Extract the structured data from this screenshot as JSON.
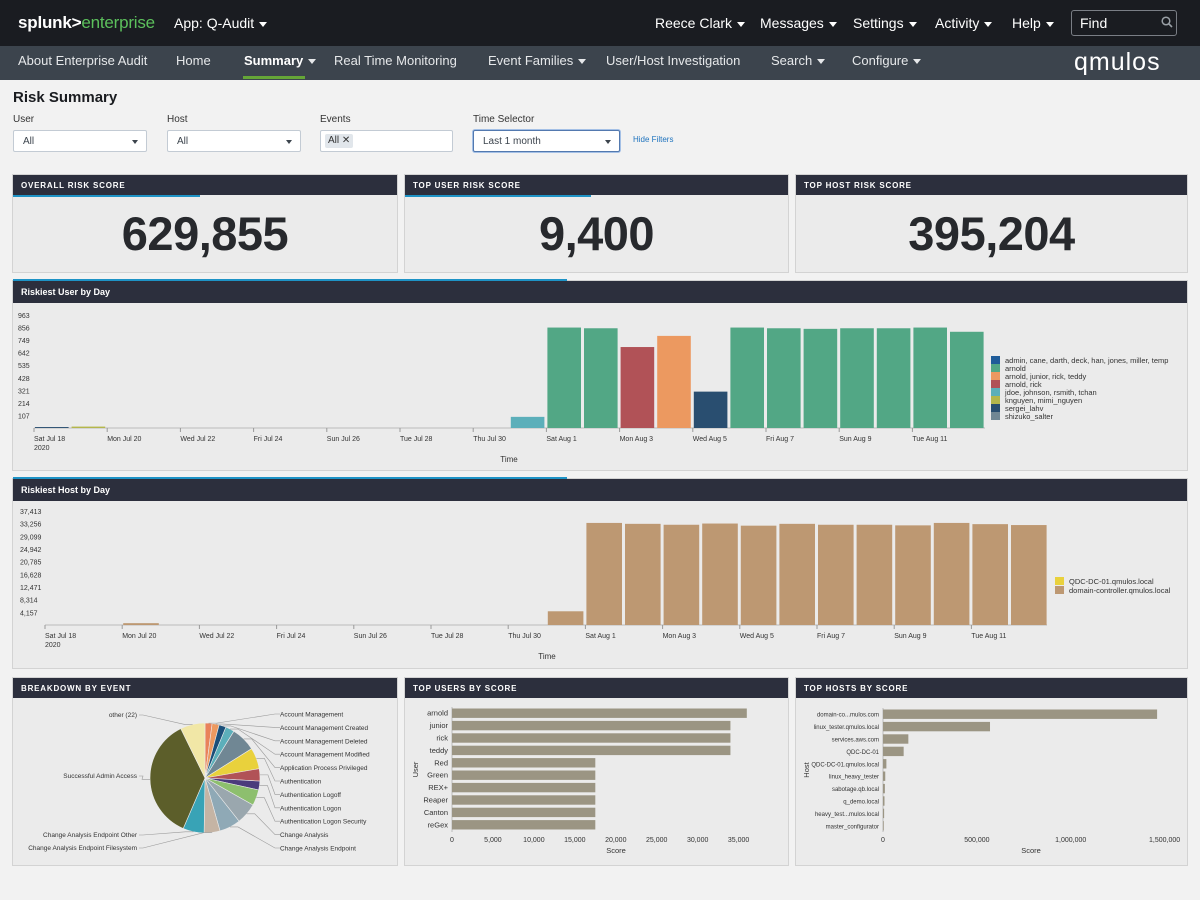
{
  "topbar": {
    "logo_part1": "splunk>",
    "logo_part2": "enterprise",
    "app_menu": "App: Q-Audit",
    "menus": [
      {
        "label": "Reece Clark"
      },
      {
        "label": "Messages"
      },
      {
        "label": "Settings"
      },
      {
        "label": "Activity"
      },
      {
        "label": "Help"
      }
    ],
    "find_placeholder": "Find"
  },
  "nav": {
    "items": [
      {
        "label": "About Enterprise Audit"
      },
      {
        "label": "Home"
      },
      {
        "label": "Summary",
        "active": true
      },
      {
        "label": "Real Time Monitoring"
      },
      {
        "label": "Event Families"
      },
      {
        "label": "User/Host Investigation"
      },
      {
        "label": "Search"
      },
      {
        "label": "Configure"
      }
    ],
    "brand": "qmulos"
  },
  "page": {
    "title": "Risk Summary",
    "filters": {
      "user": {
        "label": "User",
        "value": "All"
      },
      "host": {
        "label": "Host",
        "value": "All"
      },
      "events": {
        "label": "Events",
        "chip": "All"
      },
      "time": {
        "label": "Time Selector",
        "value": "Last 1 month"
      },
      "hide_label": "Hide Filters"
    }
  },
  "kpis": [
    {
      "title": "OVERALL RISK SCORE",
      "value": "629,855"
    },
    {
      "title": "TOP USER RISK SCORE",
      "value": "9,400"
    },
    {
      "title": "TOP HOST RISK SCORE",
      "value": "395,204"
    }
  ],
  "colors": {
    "green": "#52a785",
    "red": "#b15257",
    "orange": "#ec9960",
    "navy": "#294e70",
    "teal": "#5cafba",
    "olive": "#b4b64c",
    "tan": "#bd9872",
    "yellow": "#e9d13c",
    "bar_gray": "#9b9583"
  },
  "chart_data": [
    {
      "type": "bar",
      "title": "Riskiest User by Day",
      "xlabel": "Time",
      "ylim": [
        0,
        963
      ],
      "yticks": [
        "963",
        "856",
        "749",
        "642",
        "535",
        "428",
        "321",
        "214",
        "107"
      ],
      "xticks": [
        {
          "label": "Sat Jul 18",
          "sub": "2020"
        },
        {
          "label": "Mon Jul 20"
        },
        {
          "label": "Wed Jul 22"
        },
        {
          "label": "Fri Jul 24"
        },
        {
          "label": "Sun Jul 26"
        },
        {
          "label": "Tue Jul 28"
        },
        {
          "label": "Thu Jul 30"
        },
        {
          "label": "Sat Aug 1"
        },
        {
          "label": "Mon Aug 3"
        },
        {
          "label": "Wed Aug 5"
        },
        {
          "label": "Fri Aug 7"
        },
        {
          "label": "Sun Aug 9"
        },
        {
          "label": "Tue Aug 11"
        }
      ],
      "bars": [
        {
          "date": "2020-07-18",
          "value": 8,
          "series": "sergei_lahv"
        },
        {
          "date": "2020-07-19",
          "value": 12,
          "series": "knguyen, mimi_nguyen"
        },
        {
          "date": "2020-07-31",
          "value": 95,
          "series": "jdoe, johnson, rsmith, tchan"
        },
        {
          "date": "2020-08-01",
          "value": 856,
          "series": "arnold"
        },
        {
          "date": "2020-08-02",
          "value": 850,
          "series": "arnold"
        },
        {
          "date": "2020-08-03",
          "value": 690,
          "series": "arnold, rick"
        },
        {
          "date": "2020-08-04",
          "value": 785,
          "series": "arnold, junior, rick, teddy"
        },
        {
          "date": "2020-08-05",
          "value": 310,
          "series": "sergei_lahv"
        },
        {
          "date": "2020-08-06",
          "value": 856,
          "series": "arnold"
        },
        {
          "date": "2020-08-07",
          "value": 850,
          "series": "arnold"
        },
        {
          "date": "2020-08-08",
          "value": 845,
          "series": "arnold"
        },
        {
          "date": "2020-08-09",
          "value": 850,
          "series": "arnold"
        },
        {
          "date": "2020-08-10",
          "value": 850,
          "series": "arnold"
        },
        {
          "date": "2020-08-11",
          "value": 856,
          "series": "arnold"
        },
        {
          "date": "2020-08-12",
          "value": 820,
          "series": "arnold"
        }
      ],
      "legend": [
        {
          "name": "admin, cane, darth, deck, han, jones, miller, temp",
          "color": "#1f5c99"
        },
        {
          "name": "arnold",
          "color": "#52a785"
        },
        {
          "name": "arnold, junior, rick, teddy",
          "color": "#ec9960"
        },
        {
          "name": "arnold, rick",
          "color": "#b15257"
        },
        {
          "name": "jdoe, johnson, rsmith, tchan",
          "color": "#5cafba"
        },
        {
          "name": "knguyen, mimi_nguyen",
          "color": "#b4b64c"
        },
        {
          "name": "sergei_lahv",
          "color": "#294e70"
        },
        {
          "name": "shizuko_salter",
          "color": "#708794"
        }
      ]
    },
    {
      "type": "bar",
      "title": "Riskiest Host by Day",
      "xlabel": "Time",
      "ylim": [
        0,
        37413
      ],
      "yticks": [
        "37,413",
        "33,256",
        "29,099",
        "24,942",
        "20,785",
        "16,628",
        "12,471",
        "8,314",
        "4,157"
      ],
      "xticks": [
        {
          "label": "Sat Jul 18",
          "sub": "2020"
        },
        {
          "label": "Mon Jul 20"
        },
        {
          "label": "Wed Jul 22"
        },
        {
          "label": "Fri Jul 24"
        },
        {
          "label": "Sun Jul 26"
        },
        {
          "label": "Tue Jul 28"
        },
        {
          "label": "Thu Jul 30"
        },
        {
          "label": "Sat Aug 1"
        },
        {
          "label": "Mon Aug 3"
        },
        {
          "label": "Wed Aug 5"
        },
        {
          "label": "Fri Aug 7"
        },
        {
          "label": "Sun Aug 9"
        },
        {
          "label": "Tue Aug 11"
        }
      ],
      "bars": [
        {
          "date": "2020-07-20",
          "value": 600,
          "series": "domain-controller.qmulos.local"
        },
        {
          "date": "2020-07-31",
          "value": 4500,
          "series": "domain-controller.qmulos.local"
        },
        {
          "date": "2020-08-01",
          "value": 33500,
          "series": "domain-controller.qmulos.local"
        },
        {
          "date": "2020-08-02",
          "value": 33200,
          "series": "domain-controller.qmulos.local"
        },
        {
          "date": "2020-08-03",
          "value": 32900,
          "series": "domain-controller.qmulos.local"
        },
        {
          "date": "2020-08-04",
          "value": 33300,
          "series": "domain-controller.qmulos.local"
        },
        {
          "date": "2020-08-05",
          "value": 32600,
          "series": "domain-controller.qmulos.local"
        },
        {
          "date": "2020-08-06",
          "value": 33200,
          "series": "domain-controller.qmulos.local"
        },
        {
          "date": "2020-08-07",
          "value": 32900,
          "series": "domain-controller.qmulos.local"
        },
        {
          "date": "2020-08-08",
          "value": 32900,
          "series": "domain-controller.qmulos.local"
        },
        {
          "date": "2020-08-09",
          "value": 32700,
          "series": "domain-controller.qmulos.local"
        },
        {
          "date": "2020-08-10",
          "value": 33500,
          "series": "domain-controller.qmulos.local"
        },
        {
          "date": "2020-08-11",
          "value": 33100,
          "series": "domain-controller.qmulos.local"
        },
        {
          "date": "2020-08-12",
          "value": 32800,
          "series": "domain-controller.qmulos.local"
        }
      ],
      "legend": [
        {
          "name": "QDC-DC-01.qmulos.local",
          "color": "#e9d13c"
        },
        {
          "name": "domain-controller.qmulos.local",
          "color": "#bd9872"
        }
      ]
    },
    {
      "type": "pie",
      "title": "BREAKDOWN BY EVENT",
      "slices": [
        {
          "label": "Account Management",
          "value": 2,
          "color": "#e9825a",
          "side": "right"
        },
        {
          "label": "Account Management Created",
          "value": 2,
          "color": "#ec9960",
          "side": "right"
        },
        {
          "label": "Account Management Deleted",
          "value": 2,
          "color": "#1c4f79",
          "side": "right"
        },
        {
          "label": "Account Management Modified",
          "value": 2.5,
          "color": "#5cafba",
          "side": "right"
        },
        {
          "label": "Application Process Privileged",
          "value": 7,
          "color": "#708794",
          "side": "right"
        },
        {
          "label": "Authentication",
          "value": 6,
          "color": "#e9d13c",
          "side": "right"
        },
        {
          "label": "Authentication Logoff",
          "value": 3.5,
          "color": "#b15257",
          "side": "right"
        },
        {
          "label": "Authentication Logon",
          "value": 2.5,
          "color": "#4b3b7c",
          "side": "right"
        },
        {
          "label": "Authentication Logon Security",
          "value": 4.5,
          "color": "#8dbf6e",
          "side": "right"
        },
        {
          "label": "Change Analysis",
          "value": 6,
          "color": "#9aa7ae",
          "side": "right"
        },
        {
          "label": "Change Analysis Endpoint",
          "value": 6,
          "color": "#8fa9b6",
          "side": "right"
        },
        {
          "label": "Change Analysis Endpoint Filesystem",
          "value": 4.5,
          "color": "#c5b4a4",
          "side": "left"
        },
        {
          "label": "Change Analysis Endpoint Other",
          "value": 6,
          "color": "#38a3b6",
          "side": "left"
        },
        {
          "label": "Successful Admin Access",
          "value": 35,
          "color": "#5c5e2a",
          "side": "left"
        },
        {
          "label": "other (22)",
          "value": 7,
          "color": "#f1e7a6",
          "side": "left"
        }
      ]
    },
    {
      "type": "bar",
      "orientation": "horizontal",
      "title": "TOP USERS BY SCORE",
      "xlabel": "Score",
      "ylabel": "User",
      "xlim": [
        0,
        37000
      ],
      "xticks": [
        "0",
        "5,000",
        "10,000",
        "15,000",
        "20,000",
        "25,000",
        "30,000",
        "35,000"
      ],
      "categories": [
        "arnold",
        "junior",
        "rick",
        "teddy",
        "Red",
        "Green",
        "REX+",
        "Reaper",
        "Canton",
        "reGex"
      ],
      "values": [
        36000,
        34000,
        34000,
        34000,
        17500,
        17500,
        17500,
        17500,
        17500,
        17500
      ]
    },
    {
      "type": "bar",
      "orientation": "horizontal",
      "title": "TOP HOSTS BY SCORE",
      "xlabel": "Score",
      "ylabel": "Host",
      "xlim": [
        0,
        1550000
      ],
      "xticks": [
        "0",
        "500,000",
        "1,000,000",
        "1,500,000"
      ],
      "categories": [
        "domain-co...mulos.com",
        "linux_tester.qmulos.local",
        "services.aws.com",
        "QDC-DC-01",
        "QDC-DC-01.qmulos.local",
        "linux_heavy_tester",
        "sabotage.qb.local",
        "q_demo.local",
        "heavy_test...mulos.local",
        "master_configurator"
      ],
      "values": [
        1460000,
        570000,
        135000,
        110000,
        18000,
        12000,
        10000,
        8000,
        6000,
        4000
      ]
    }
  ]
}
